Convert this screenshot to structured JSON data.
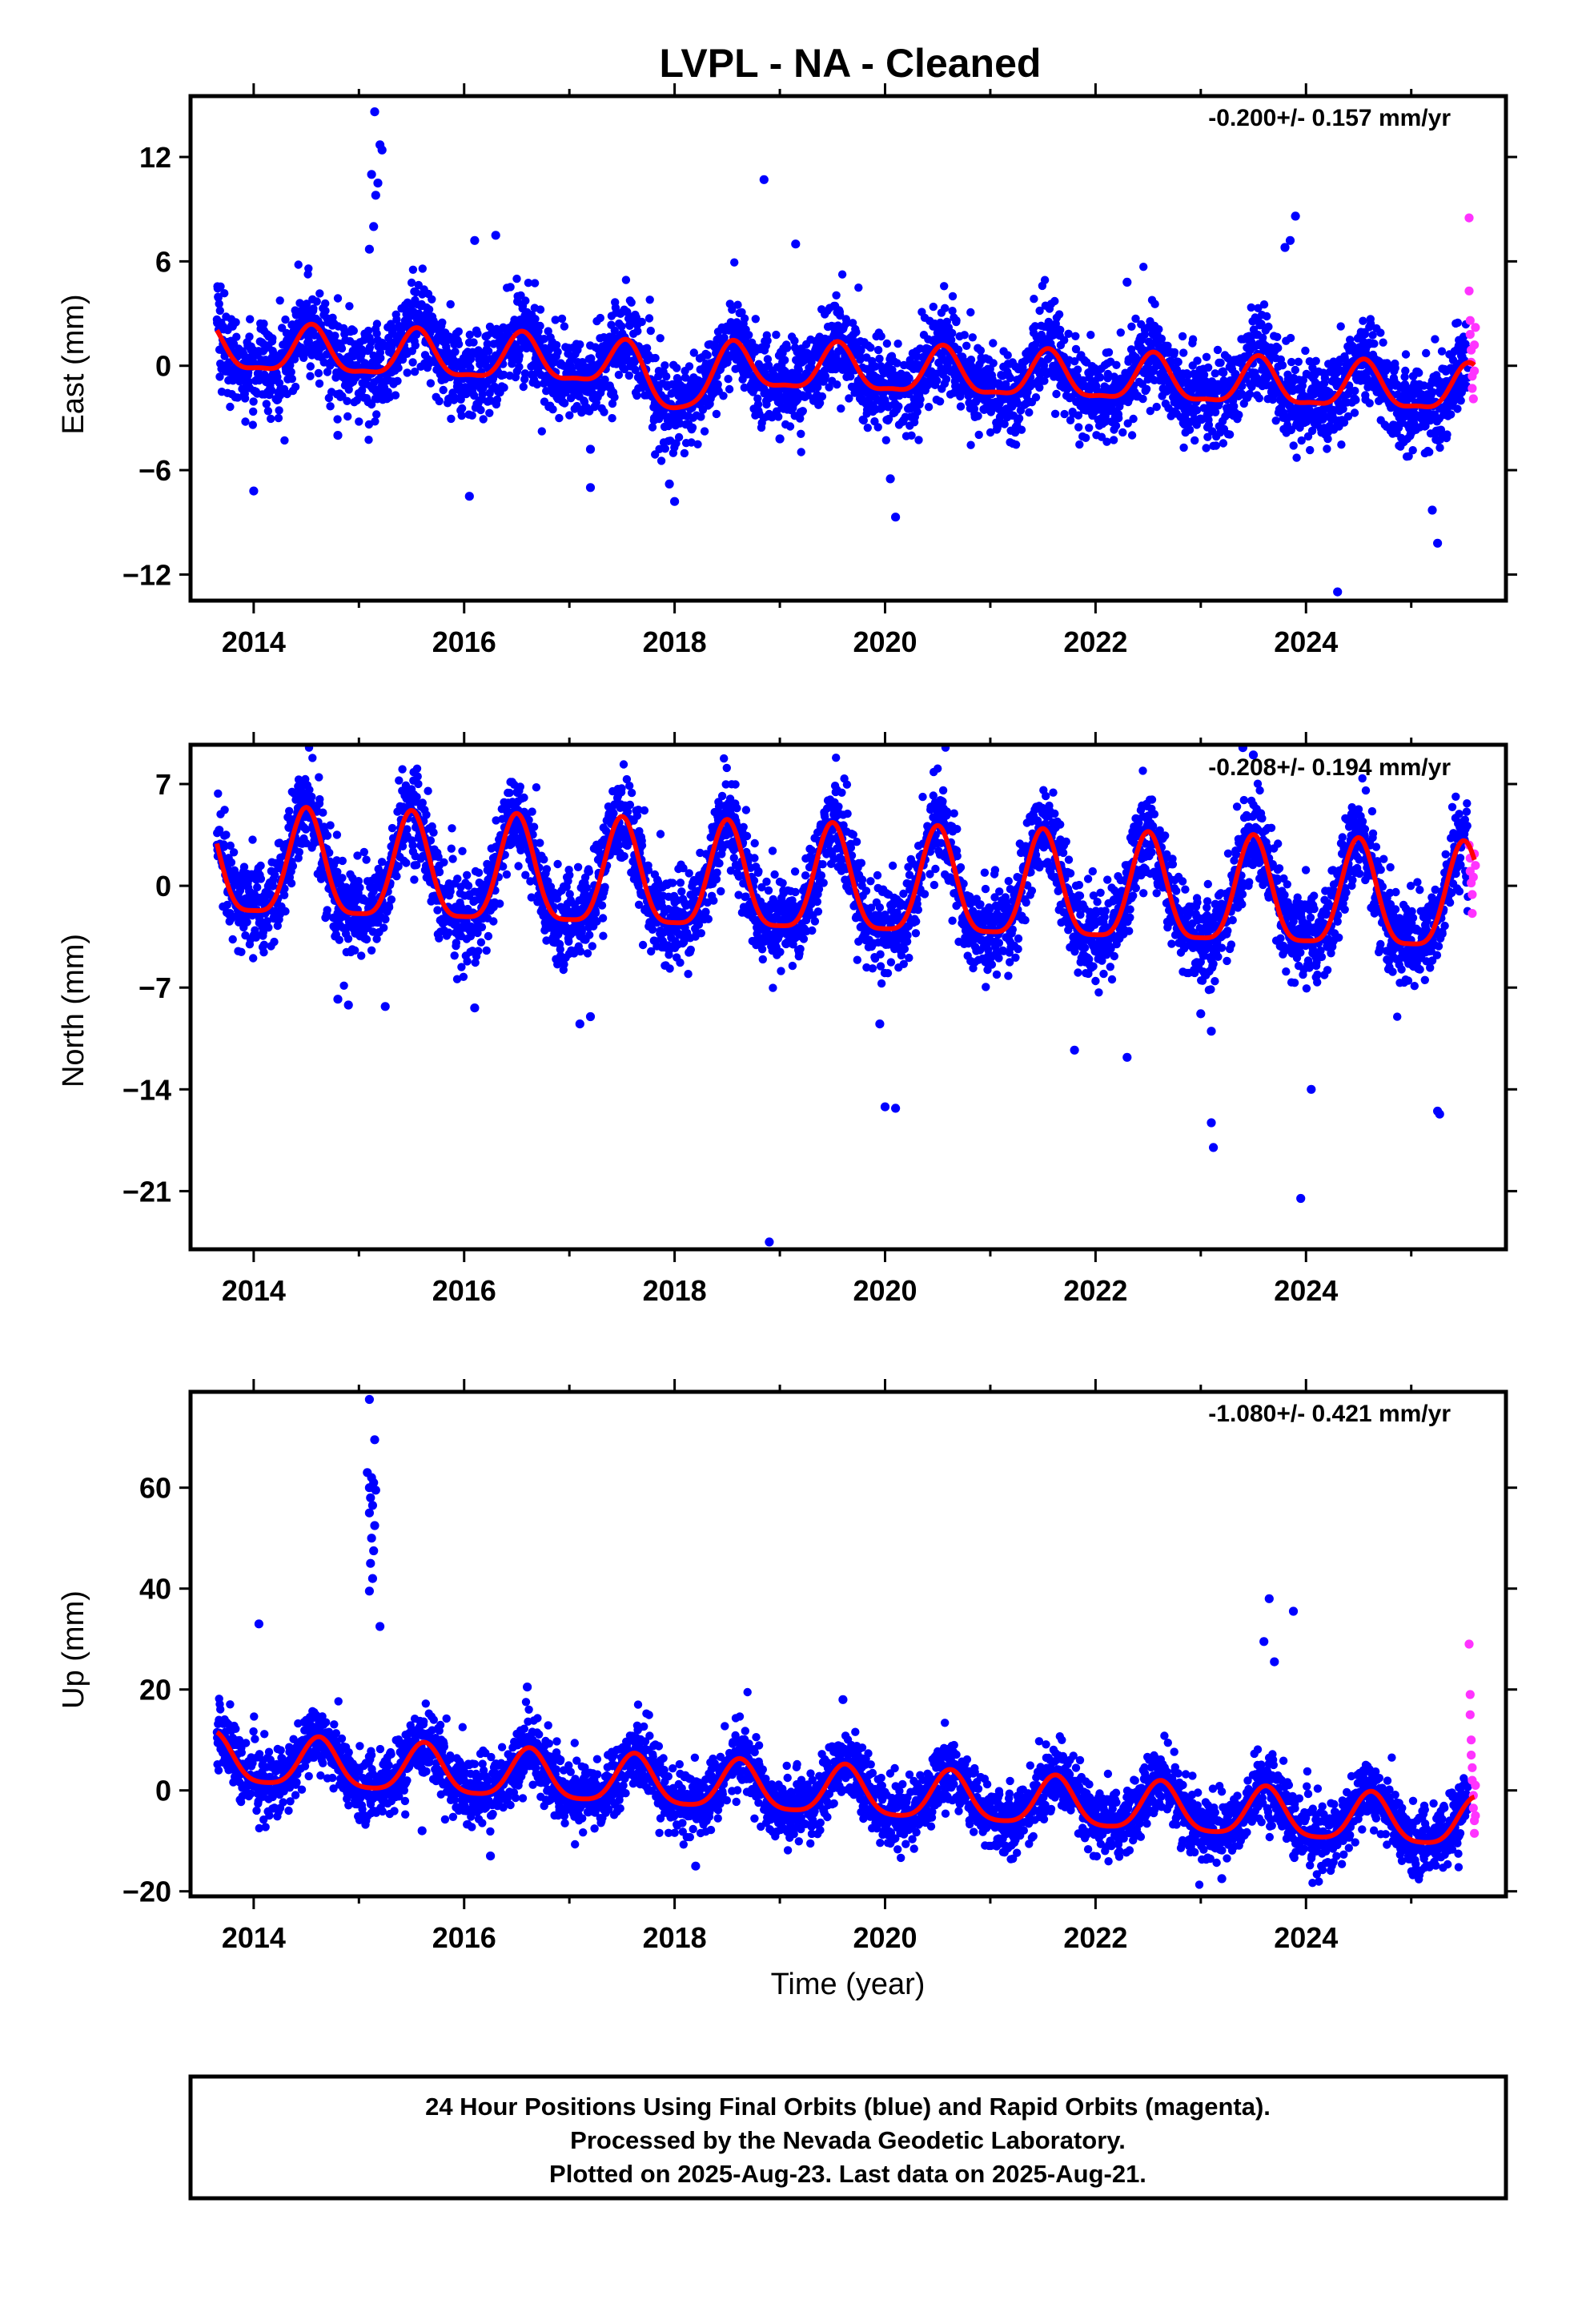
{
  "title": "LVPL  - NA - Cleaned",
  "xlabel": "Time (year)",
  "footer": {
    "line1": "24 Hour Positions Using Final Orbits (blue) and Rapid Orbits (magenta).",
    "line2": "Processed by the Nevada Geodetic Laboratory.",
    "line3": "Plotted on 2025-Aug-23. Last data on 2025-Aug-21."
  },
  "colors": {
    "final": "#0000ff",
    "rapid": "#ff33ff",
    "model": "#ff0000",
    "frame": "#000000"
  },
  "chart_data": [
    {
      "type": "scatter",
      "component": "east",
      "ylabel": "East (mm)",
      "rate": "-0.200+/- 0.157 mm/yr",
      "xlim": [
        2013.4,
        2025.9
      ],
      "ylim": [
        -13.5,
        15.5
      ],
      "xticks": [
        2014,
        2016,
        2018,
        2020,
        2022,
        2024
      ],
      "yticks": [
        -12,
        -6,
        0,
        6,
        12
      ],
      "grid": false,
      "model": {
        "trend": 0.8,
        "slope": -0.2,
        "annual": 1.3,
        "semiannual": 0.4,
        "phase_peak": 0.55,
        "dips": [
          {
            "center": 2018.0,
            "depth": 1.5,
            "width": 0.35
          }
        ]
      },
      "scatter_sigma": 1.25,
      "outliers": [
        [
          2015.15,
          14.6
        ],
        [
          2015.2,
          12.7
        ],
        [
          2015.22,
          12.4
        ],
        [
          2015.12,
          11.0
        ],
        [
          2015.18,
          10.5
        ],
        [
          2015.16,
          9.8
        ],
        [
          2015.14,
          8.0
        ],
        [
          2015.1,
          6.7
        ],
        [
          2014.0,
          -7.2
        ],
        [
          2016.05,
          -7.5
        ],
        [
          2016.3,
          7.5
        ],
        [
          2016.1,
          7.2
        ],
        [
          2017.2,
          -7.0
        ],
        [
          2017.2,
          -4.8
        ],
        [
          2018.0,
          -7.8
        ],
        [
          2017.95,
          -6.8
        ],
        [
          2018.85,
          10.7
        ],
        [
          2019.15,
          7.0
        ],
        [
          2020.1,
          -8.7
        ],
        [
          2020.05,
          -6.5
        ],
        [
          2023.9,
          8.6
        ],
        [
          2023.85,
          7.2
        ],
        [
          2023.8,
          6.8
        ],
        [
          2022.3,
          4.8
        ],
        [
          2024.3,
          -13.0
        ],
        [
          2025.2,
          -8.3
        ],
        [
          2025.25,
          -10.2
        ],
        [
          2019.0,
          -4.2
        ],
        [
          2014.8,
          -4.0
        ]
      ],
      "rapid": [
        [
          2025.55,
          8.5
        ],
        [
          2025.55,
          4.3
        ],
        [
          2025.56,
          2.6
        ],
        [
          2025.56,
          1.8
        ],
        [
          2025.57,
          0.9
        ],
        [
          2025.57,
          0.2
        ],
        [
          2025.58,
          -0.6
        ],
        [
          2025.58,
          -1.3
        ],
        [
          2025.59,
          -1.9
        ],
        [
          2025.6,
          1.2
        ],
        [
          2025.6,
          -0.3
        ],
        [
          2025.61,
          2.2
        ]
      ]
    },
    {
      "type": "scatter",
      "component": "north",
      "ylabel": "North (mm)",
      "rate": "-0.208+/- 0.194 mm/yr",
      "xlim": [
        2013.4,
        2025.9
      ],
      "ylim": [
        -25.0,
        9.7
      ],
      "xticks": [
        2014,
        2016,
        2018,
        2020,
        2022,
        2024
      ],
      "yticks": [
        -21,
        -14,
        -7,
        0,
        7
      ],
      "grid": false,
      "model": {
        "trend": 1.0,
        "slope": -0.208,
        "annual": 3.6,
        "semiannual": 0.9,
        "phase_peak": 0.5,
        "dips": []
      },
      "scatter_sigma": 1.55,
      "outliers": [
        [
          2018.9,
          -24.5
        ],
        [
          2020.0,
          -15.2
        ],
        [
          2020.1,
          -15.3
        ],
        [
          2023.1,
          -16.3
        ],
        [
          2023.12,
          -18.0
        ],
        [
          2023.95,
          -21.5
        ],
        [
          2024.05,
          -14.0
        ],
        [
          2025.25,
          -15.5
        ],
        [
          2025.27,
          -15.7
        ],
        [
          2021.8,
          -11.3
        ],
        [
          2022.3,
          -11.8
        ],
        [
          2023.1,
          -10.0
        ],
        [
          2017.1,
          -9.5
        ],
        [
          2017.2,
          -9.0
        ],
        [
          2014.8,
          -7.8
        ],
        [
          2014.9,
          -8.2
        ],
        [
          2016.1,
          -8.4
        ],
        [
          2015.25,
          -8.3
        ],
        [
          2023.4,
          9.5
        ],
        [
          2023.5,
          9.0
        ],
        [
          2019.95,
          -9.5
        ],
        [
          2023.0,
          -8.8
        ]
      ],
      "rapid": [
        [
          2025.55,
          2.8
        ],
        [
          2025.56,
          1.9
        ],
        [
          2025.56,
          1.0
        ],
        [
          2025.57,
          0.2
        ],
        [
          2025.58,
          -0.6
        ],
        [
          2025.58,
          -1.9
        ],
        [
          2025.59,
          0.6
        ],
        [
          2025.6,
          2.2
        ],
        [
          2025.61,
          1.4
        ]
      ]
    },
    {
      "type": "scatter",
      "component": "up",
      "ylabel": "Up (mm)",
      "rate": "-1.080+/- 0.421 mm/yr",
      "xlim": [
        2013.4,
        2025.9
      ],
      "ylim": [
        -21.0,
        79.0
      ],
      "xticks": [
        2014,
        2016,
        2018,
        2020,
        2022,
        2024
      ],
      "yticks": [
        -20,
        0,
        20,
        40,
        60
      ],
      "grid": false,
      "model": {
        "trend": 5.5,
        "slope": -1.08,
        "annual": 4.8,
        "semiannual": 1.0,
        "phase_peak": 0.62,
        "dips": []
      },
      "scatter_sigma": 3.3,
      "outliers": [
        [
          2015.1,
          77.5
        ],
        [
          2015.15,
          69.5
        ],
        [
          2015.08,
          63.0
        ],
        [
          2015.12,
          62.0
        ],
        [
          2015.14,
          61.0
        ],
        [
          2015.1,
          60.0
        ],
        [
          2015.16,
          59.5
        ],
        [
          2015.11,
          58.0
        ],
        [
          2015.13,
          56.5
        ],
        [
          2015.1,
          55.0
        ],
        [
          2015.15,
          52.5
        ],
        [
          2015.12,
          50.0
        ],
        [
          2015.14,
          47.5
        ],
        [
          2015.11,
          45.0
        ],
        [
          2015.13,
          42.0
        ],
        [
          2015.1,
          39.5
        ],
        [
          2015.2,
          32.5
        ],
        [
          2014.05,
          33.0
        ],
        [
          2023.65,
          38.0
        ],
        [
          2023.6,
          29.5
        ],
        [
          2023.7,
          25.5
        ],
        [
          2023.88,
          35.5
        ],
        [
          2016.6,
          20.5
        ],
        [
          2016.25,
          -13.0
        ],
        [
          2023.2,
          -17.5
        ],
        [
          2018.2,
          -15.0
        ],
        [
          2019.6,
          18.0
        ],
        [
          2015.6,
          -8.0
        ]
      ],
      "rapid": [
        [
          2025.55,
          29.0
        ],
        [
          2025.56,
          19.0
        ],
        [
          2025.56,
          15.0
        ],
        [
          2025.57,
          10.0
        ],
        [
          2025.57,
          7.0
        ],
        [
          2025.58,
          4.5
        ],
        [
          2025.58,
          2.0
        ],
        [
          2025.59,
          -1.0
        ],
        [
          2025.59,
          -3.5
        ],
        [
          2025.6,
          -6.0
        ],
        [
          2025.6,
          -8.5
        ],
        [
          2025.61,
          1.0
        ],
        [
          2025.61,
          -5.0
        ]
      ]
    }
  ]
}
